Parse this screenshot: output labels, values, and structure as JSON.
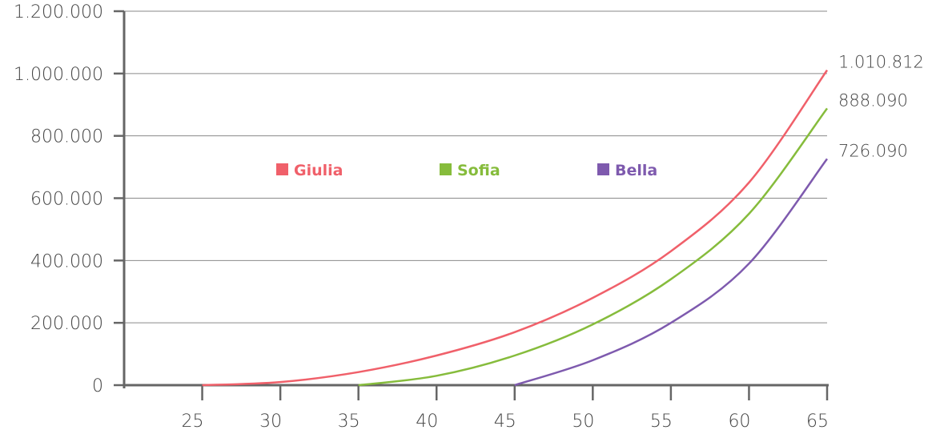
{
  "chart_data": {
    "type": "line",
    "title": "",
    "xlabel": "",
    "ylabel": "",
    "x_ticks": [
      "25",
      "30",
      "35",
      "40",
      "45",
      "50",
      "55",
      "60",
      "65"
    ],
    "y_ticks": [
      "0",
      "200.000",
      "400.000",
      "600.000",
      "800.000",
      "1.000.000",
      "1.200.000"
    ],
    "xlim": [
      20,
      65
    ],
    "ylim": [
      0,
      1200000
    ],
    "grid": "horizontal",
    "legend_position": "top-center",
    "series": [
      {
        "name": "Giulia",
        "color": "#F0606A",
        "end_label": "1.010.812",
        "x": [
          25,
          30,
          35,
          40,
          45,
          50,
          55,
          60,
          65
        ],
        "y": [
          0,
          10000,
          42000,
          95000,
          170000,
          280000,
          430000,
          650000,
          1010812
        ]
      },
      {
        "name": "Sofia",
        "color": "#86BC3C",
        "end_label": "888.090",
        "x": [
          35,
          40,
          45,
          50,
          55,
          60,
          65
        ],
        "y": [
          0,
          30000,
          95000,
          195000,
          340000,
          550000,
          888090
        ]
      },
      {
        "name": "Bella",
        "color": "#7E5AAE",
        "end_label": "726.090",
        "x": [
          45,
          50,
          55,
          60,
          65
        ],
        "y": [
          0,
          80000,
          200000,
          390000,
          726090
        ]
      }
    ]
  }
}
